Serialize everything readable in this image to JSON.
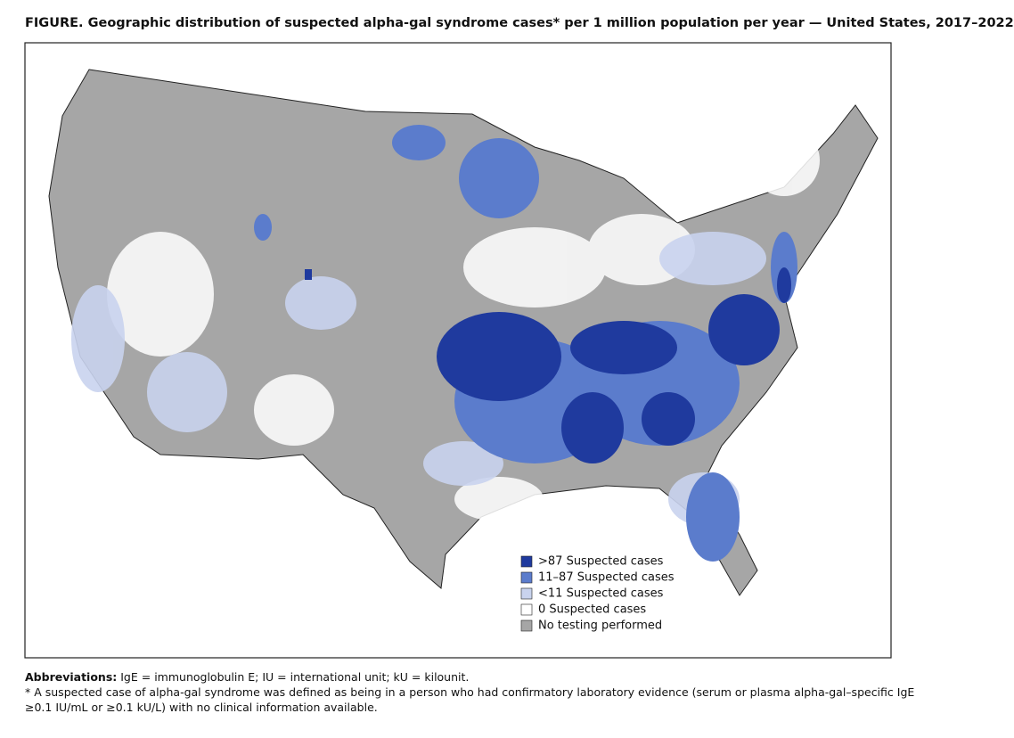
{
  "title": "FIGURE. Geographic distribution of suspected alpha-gal syndrome cases* per 1 million population per year — United States, 2017–2022",
  "legend": {
    "items": [
      {
        "label": ">87 Suspected cases",
        "color": "#1f3a9e"
      },
      {
        "label": "11–87 Suspected cases",
        "color": "#5b7ccc"
      },
      {
        "label": "<11 Suspected cases",
        "color": "#c9d3ee"
      },
      {
        "label": "0 Suspected cases",
        "color": "#ffffff"
      },
      {
        "label": "No testing performed",
        "color": "#a6a6a6"
      }
    ]
  },
  "footnotes": {
    "abbreviations_label": "Abbreviations:",
    "abbreviations_text": "IgE = immunoglobulin E; IU = international unit; kU = kilounit.",
    "note_line_1": "* A suspected case of alpha-gal syndrome was defined as being in a person who had confirmatory laboratory evidence (serum or plasma alpha-gal–specific IgE",
    "note_line_2": "≥0.1 IU/mL or ≥0.1 kU/L) with no clinical information available."
  }
}
